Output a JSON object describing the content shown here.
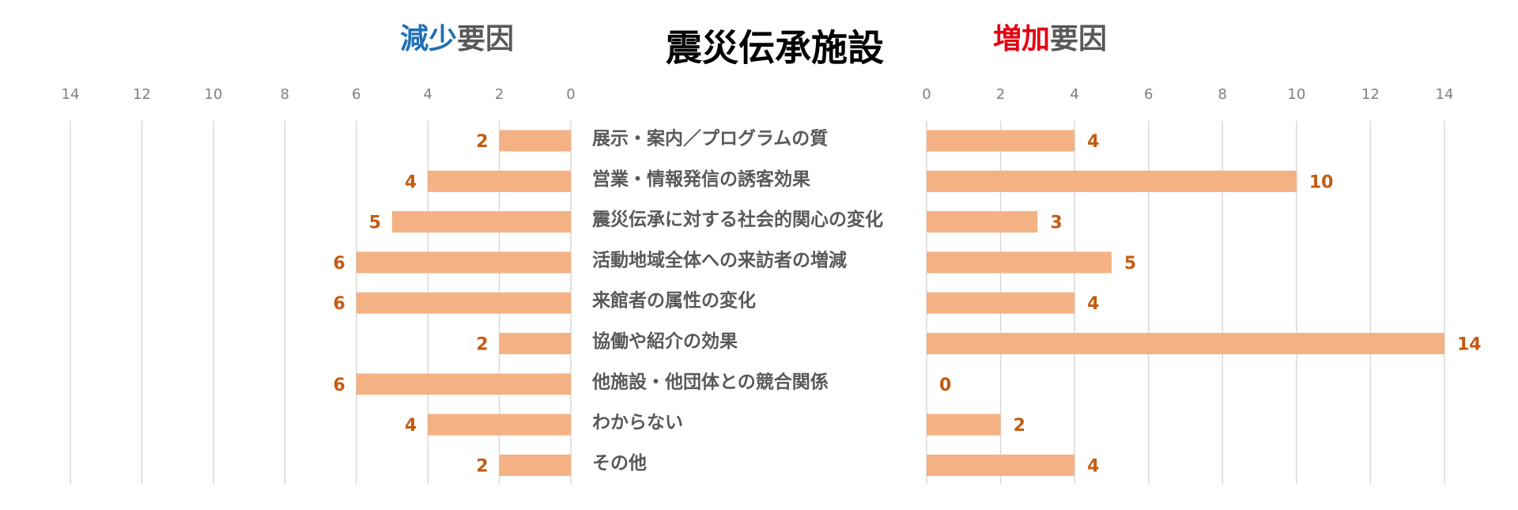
{
  "chart_data": {
    "type": "butterfly",
    "title": "震災伝承施設",
    "categories": [
      "展示・案内／プログラムの質",
      "営業・情報発信の誘客効果",
      "震災伝承に対する社会的関心の変化",
      "活動地域全体への来訪者の増減",
      "来館者の属性の変化",
      "協働や紹介の効果",
      "他施設・他団体との競合関係",
      "わからない",
      "その他"
    ],
    "series": [
      {
        "label_parts": [
          "減少",
          "要因"
        ],
        "label_colors": [
          "#1f6fb5",
          "#595959"
        ],
        "color": "#f4b183",
        "value_label_color": "#c55a11",
        "reversed": true,
        "values": [
          2,
          4,
          5,
          6,
          6,
          2,
          6,
          4,
          2
        ],
        "xlim": [
          0,
          14
        ],
        "xticks": [
          0,
          2,
          4,
          6,
          8,
          10,
          12,
          14
        ]
      },
      {
        "label_parts": [
          "増加",
          "要因"
        ],
        "label_colors": [
          "#e60012",
          "#595959"
        ],
        "color": "#f4b183",
        "value_label_color": "#c55a11",
        "reversed": false,
        "values": [
          4,
          10,
          3,
          5,
          4,
          14,
          0,
          2,
          4
        ],
        "xlim": [
          0,
          14
        ],
        "xticks": [
          0,
          2,
          4,
          6,
          8,
          10,
          12,
          14
        ]
      }
    ],
    "grid": true
  }
}
